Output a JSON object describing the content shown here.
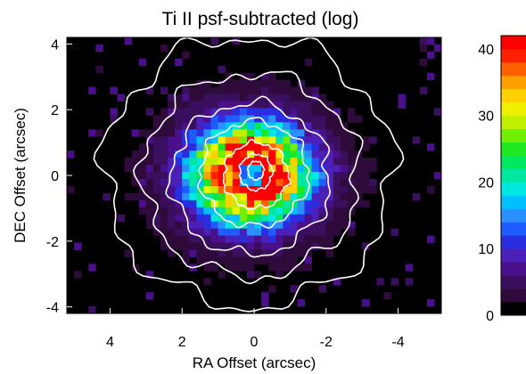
{
  "chart_data": {
    "type": "heatmap",
    "title": "Ti II psf-subtracted (log)",
    "xlabel": "RA Offset (arcsec)",
    "ylabel": "DEC Offset (arcsec)",
    "xlim": [
      5.2,
      -5.2
    ],
    "ylim": [
      -4.2,
      4.2
    ],
    "x_ticks": [
      4,
      2,
      0,
      -2,
      -4
    ],
    "y_ticks": [
      -4,
      -2,
      0,
      2,
      4
    ],
    "colorbar": {
      "range": [
        0,
        42
      ],
      "ticks": [
        0,
        10,
        20,
        30,
        40
      ],
      "levels": [
        {
          "from": 0,
          "to": 2,
          "color": "#000000"
        },
        {
          "from": 2,
          "to": 4,
          "color": "#2e0b3a"
        },
        {
          "from": 4,
          "to": 6,
          "color": "#3a0f5e"
        },
        {
          "from": 6,
          "to": 8,
          "color": "#4a0f8a"
        },
        {
          "from": 8,
          "to": 10,
          "color": "#4a20b8"
        },
        {
          "from": 10,
          "to": 12,
          "color": "#2a2ee0"
        },
        {
          "from": 12,
          "to": 14,
          "color": "#1e5cff"
        },
        {
          "from": 14,
          "to": 16,
          "color": "#2a8fff"
        },
        {
          "from": 16,
          "to": 18,
          "color": "#00c0ff"
        },
        {
          "from": 18,
          "to": 20,
          "color": "#00e8e0"
        },
        {
          "from": 20,
          "to": 22,
          "color": "#00e8a0"
        },
        {
          "from": 22,
          "to": 24,
          "color": "#00e860"
        },
        {
          "from": 24,
          "to": 26,
          "color": "#20e820"
        },
        {
          "from": 26,
          "to": 28,
          "color": "#70f000"
        },
        {
          "from": 28,
          "to": 30,
          "color": "#c0f000"
        },
        {
          "from": 30,
          "to": 32,
          "color": "#f0f000"
        },
        {
          "from": 32,
          "to": 34,
          "color": "#ffd000"
        },
        {
          "from": 34,
          "to": 36,
          "color": "#ffa000"
        },
        {
          "from": 36,
          "to": 38,
          "color": "#ff6000"
        },
        {
          "from": 38,
          "to": 40,
          "color": "#ff2000"
        },
        {
          "from": 40,
          "to": 42,
          "color": "#ff0000"
        }
      ]
    },
    "contours": [
      {
        "center": [
          0.15,
          0.1
        ],
        "rx": 4.0,
        "ry": 4.1
      },
      {
        "center": [
          0.1,
          0.0
        ],
        "rx": 3.0,
        "ry": 3.1
      },
      {
        "center": [
          0.1,
          -0.1
        ],
        "rx": 2.2,
        "ry": 2.3
      },
      {
        "center": [
          0.0,
          0.05
        ],
        "rx": 1.5,
        "ry": 1.6
      },
      {
        "center": [
          -0.05,
          0.0
        ],
        "rx": 0.9,
        "ry": 1.0
      },
      {
        "center": [
          -0.05,
          0.1
        ],
        "rx": 0.45,
        "ry": 0.55
      },
      {
        "center": [
          -0.05,
          0.15
        ],
        "rx": 0.22,
        "ry": 0.28
      }
    ]
  }
}
